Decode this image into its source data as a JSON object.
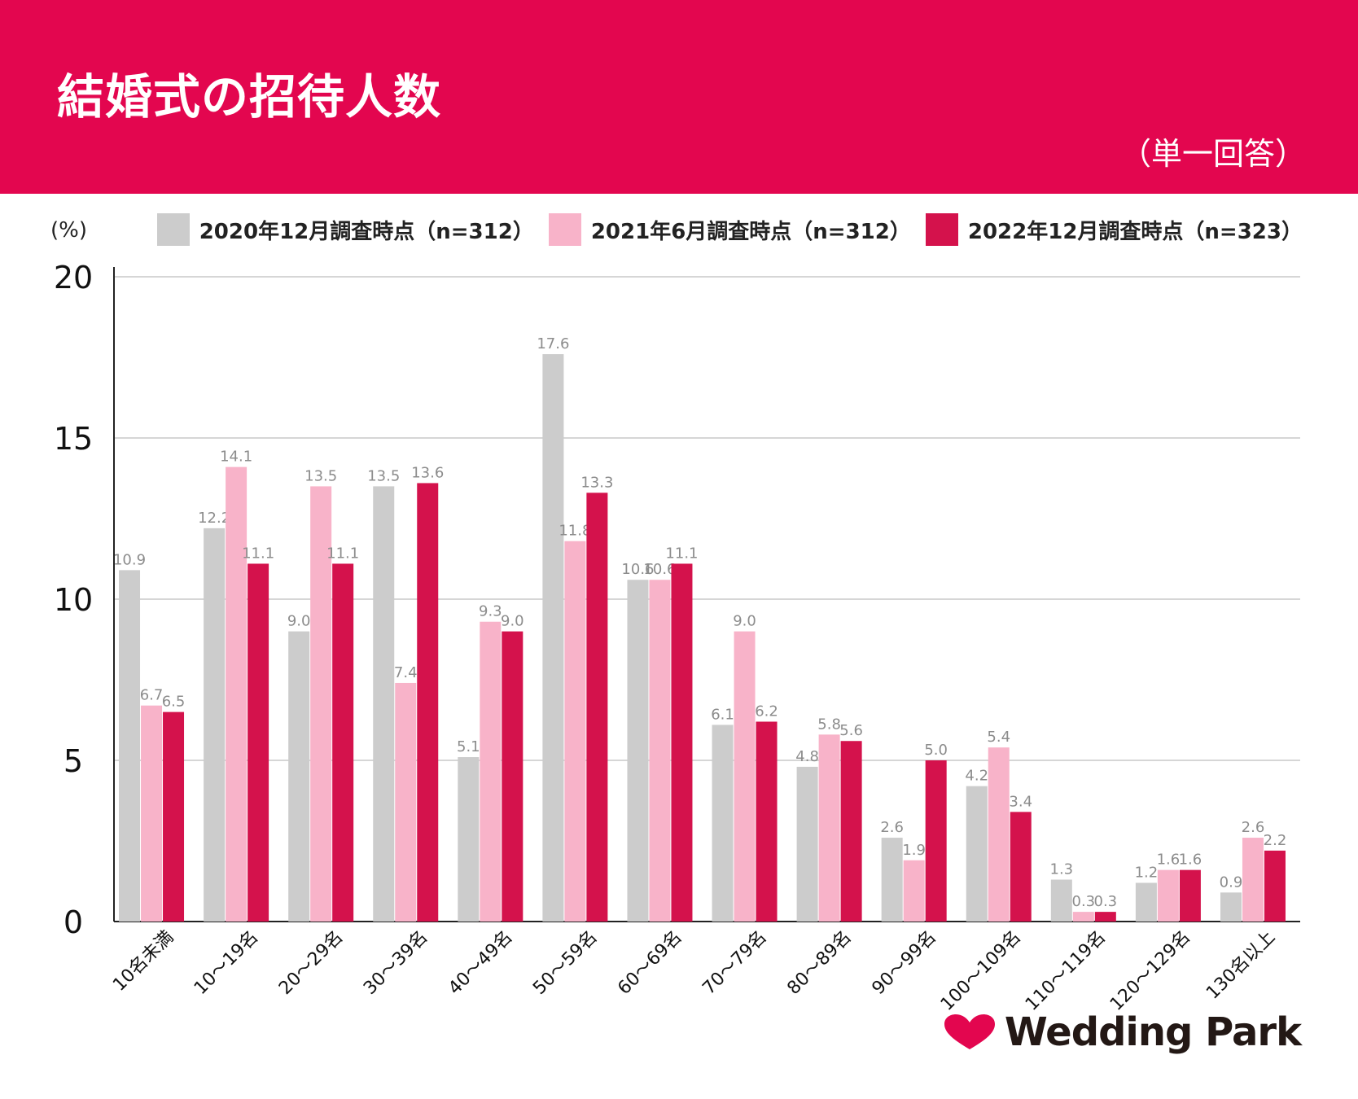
{
  "header": {
    "title": "結婚式の招待人数",
    "subtitle": "（単一回答）"
  },
  "colors": {
    "header_bg": "#e3064f",
    "series_2020": "#cccccc",
    "series_2021": "#f8b3c9",
    "series_2022": "#d4124c",
    "label_text": "#8c8c8c"
  },
  "logo": {
    "text": "Wedding Park",
    "icon": "heart-icon"
  },
  "chart_data": {
    "type": "bar",
    "unit_label": "(%)",
    "ylim": [
      0,
      20
    ],
    "yticks": [
      0,
      5,
      10,
      15,
      20
    ],
    "grid": true,
    "legend_position": "top-right",
    "categories": [
      "10名未満",
      "10～19名",
      "20～29名",
      "30～39名",
      "40～49名",
      "50～59名",
      "60～69名",
      "70～79名",
      "80～89名",
      "90～99名",
      "100～109名",
      "110～119名",
      "120～129名",
      "130名以上"
    ],
    "series": [
      {
        "name": "2020年12月調査時点（n=312）",
        "color": "#cccccc",
        "values": [
          10.9,
          12.2,
          9.0,
          13.5,
          5.1,
          17.6,
          10.6,
          6.1,
          4.8,
          2.6,
          4.2,
          1.3,
          1.2,
          0.9
        ]
      },
      {
        "name": "2021年6月調査時点（n=312）",
        "color": "#f8b3c9",
        "values": [
          6.7,
          14.1,
          13.5,
          7.4,
          9.3,
          11.8,
          10.6,
          9.0,
          5.8,
          1.9,
          5.4,
          0.3,
          1.6,
          2.6
        ]
      },
      {
        "name": "2022年12月調査時点（n=323）",
        "color": "#d4124c",
        "values": [
          6.5,
          11.1,
          11.1,
          13.6,
          9.0,
          13.3,
          11.1,
          6.2,
          5.6,
          5.0,
          3.4,
          0.3,
          1.6,
          2.2
        ]
      }
    ]
  }
}
